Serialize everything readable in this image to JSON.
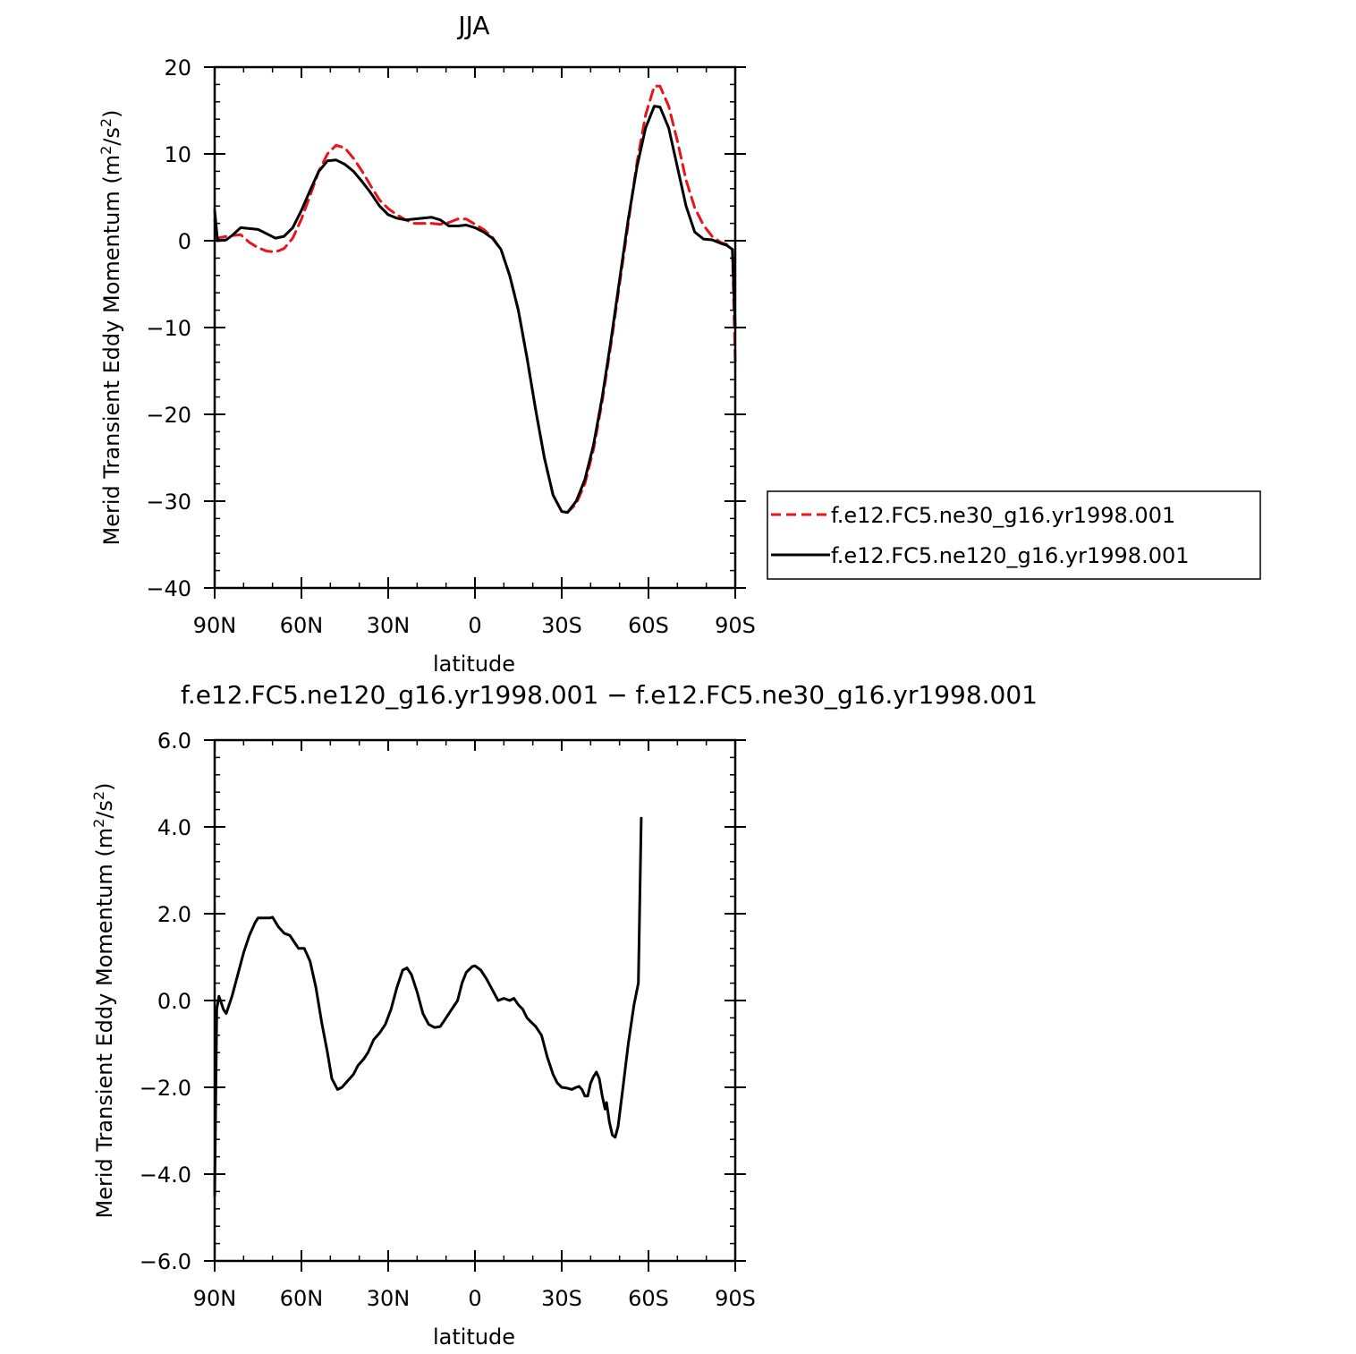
{
  "chart_data": [
    {
      "type": "line",
      "title": "JJA",
      "xlabel": "latitude",
      "ylabel_main": "Merid Transient Eddy Momentum (m",
      "ylabel_mid": "/s",
      "ylabel_end": ")",
      "ylabel_sup1": "2",
      "ylabel_sup2": "2",
      "xlim": [
        90,
        -90
      ],
      "ylim": [
        -40,
        20
      ],
      "xticks": [
        90,
        60,
        30,
        0,
        -30,
        -60,
        -90
      ],
      "xtick_labels": [
        "90N",
        "60N",
        "30N",
        "0",
        "30S",
        "60S",
        "90S"
      ],
      "yticks": [
        20,
        10,
        0,
        -10,
        -20,
        -30,
        -40
      ],
      "ytick_labels": [
        "20",
        "10",
        "0",
        "−10",
        "−20",
        "−30",
        "−40"
      ],
      "legend_position": "right",
      "series": [
        {
          "name": "f.e12.FC5.ne30_g16.yr1998.001",
          "color": "#e8141a",
          "dash": "dashed",
          "points": [
            [
              90,
              2.5
            ],
            [
              89,
              0.3
            ],
            [
              86,
              0.5
            ],
            [
              84,
              0.6
            ],
            [
              81,
              0.7
            ],
            [
              78,
              -0.2
            ],
            [
              75,
              -0.8
            ],
            [
              72,
              -1.2
            ],
            [
              69,
              -1.3
            ],
            [
              66,
              -0.9
            ],
            [
              63,
              0.3
            ],
            [
              60,
              2.5
            ],
            [
              57,
              5.2
            ],
            [
              54,
              8.0
            ],
            [
              51,
              10.0
            ],
            [
              48,
              11.0
            ],
            [
              45,
              10.7
            ],
            [
              42,
              9.5
            ],
            [
              39,
              8.0
            ],
            [
              36,
              6.3
            ],
            [
              33,
              4.7
            ],
            [
              30,
              3.7
            ],
            [
              27,
              3.0
            ],
            [
              24,
              2.4
            ],
            [
              21,
              2.0
            ],
            [
              18,
              2.0
            ],
            [
              15,
              2.0
            ],
            [
              12,
              1.9
            ],
            [
              9,
              2.1
            ],
            [
              6,
              2.5
            ],
            [
              3,
              2.5
            ],
            [
              0,
              1.9
            ],
            [
              -3,
              1.3
            ],
            [
              -6,
              0.4
            ],
            [
              -9,
              -1.0
            ],
            [
              -12,
              -4.0
            ],
            [
              -15,
              -8.0
            ],
            [
              -18,
              -13.5
            ],
            [
              -21,
              -19.5
            ],
            [
              -24,
              -25.0
            ],
            [
              -27,
              -29.3
            ],
            [
              -30,
              -31.2
            ],
            [
              -32,
              -31.3
            ],
            [
              -35,
              -30.3
            ],
            [
              -38,
              -28.0
            ],
            [
              -41,
              -24.0
            ],
            [
              -44,
              -18.5
            ],
            [
              -47,
              -12.0
            ],
            [
              -50,
              -5.0
            ],
            [
              -53,
              2.0
            ],
            [
              -56,
              9.0
            ],
            [
              -59,
              14.5
            ],
            [
              -62,
              17.8
            ],
            [
              -64,
              17.8
            ],
            [
              -67,
              15.5
            ],
            [
              -70,
              11.5
            ],
            [
              -73,
              7.0
            ],
            [
              -76,
              3.8
            ],
            [
              -79,
              1.8
            ],
            [
              -82,
              0.5
            ],
            [
              -85,
              -0.2
            ],
            [
              -87,
              -0.4
            ],
            [
              -89,
              -1.0
            ],
            [
              -90,
              -14.0
            ]
          ]
        },
        {
          "name": "f.e12.FC5.ne120_g16.yr1998.001",
          "color": "#000000",
          "dash": "solid",
          "points": [
            [
              90,
              3.5
            ],
            [
              89,
              0.0
            ],
            [
              86,
              0.1
            ],
            [
              84,
              0.6
            ],
            [
              81,
              1.5
            ],
            [
              78,
              1.4
            ],
            [
              75,
              1.3
            ],
            [
              72,
              0.8
            ],
            [
              69,
              0.3
            ],
            [
              66,
              0.5
            ],
            [
              63,
              1.5
            ],
            [
              60,
              3.5
            ],
            [
              57,
              5.8
            ],
            [
              54,
              8.0
            ],
            [
              51,
              9.2
            ],
            [
              48,
              9.3
            ],
            [
              45,
              8.8
            ],
            [
              42,
              8.0
            ],
            [
              39,
              6.8
            ],
            [
              36,
              5.5
            ],
            [
              33,
              4.0
            ],
            [
              30,
              3.0
            ],
            [
              27,
              2.6
            ],
            [
              24,
              2.4
            ],
            [
              21,
              2.5
            ],
            [
              18,
              2.6
            ],
            [
              15,
              2.7
            ],
            [
              12,
              2.4
            ],
            [
              9,
              1.7
            ],
            [
              6,
              1.7
            ],
            [
              3,
              1.8
            ],
            [
              0,
              1.5
            ],
            [
              -3,
              1.0
            ],
            [
              -6,
              0.3
            ],
            [
              -9,
              -1.0
            ],
            [
              -12,
              -4.0
            ],
            [
              -15,
              -8.0
            ],
            [
              -18,
              -13.5
            ],
            [
              -21,
              -19.5
            ],
            [
              -24,
              -25.0
            ],
            [
              -27,
              -29.3
            ],
            [
              -30,
              -31.2
            ],
            [
              -32,
              -31.3
            ],
            [
              -35,
              -30.0
            ],
            [
              -38,
              -27.5
            ],
            [
              -41,
              -23.5
            ],
            [
              -44,
              -18.0
            ],
            [
              -47,
              -11.5
            ],
            [
              -50,
              -4.5
            ],
            [
              -53,
              2.5
            ],
            [
              -56,
              8.5
            ],
            [
              -59,
              13.0
            ],
            [
              -62,
              15.5
            ],
            [
              -64,
              15.4
            ],
            [
              -67,
              13.0
            ],
            [
              -70,
              8.5
            ],
            [
              -73,
              4.0
            ],
            [
              -76,
              1.0
            ],
            [
              -79,
              0.2
            ],
            [
              -82,
              0.1
            ],
            [
              -85,
              -0.3
            ],
            [
              -87,
              -0.5
            ],
            [
              -89,
              -1.0
            ],
            [
              -90,
              -10.0
            ]
          ]
        }
      ]
    },
    {
      "type": "line",
      "title": "f.e12.FC5.ne120_g16.yr1998.001 − f.e12.FC5.ne30_g16.yr1998.001",
      "xlabel": "latitude",
      "ylabel_main": "Merid Transient Eddy Momentum (m",
      "ylabel_mid": "/s",
      "ylabel_end": ")",
      "ylabel_sup1": "2",
      "ylabel_sup2": "2",
      "xlim": [
        90,
        -90
      ],
      "ylim": [
        -6,
        6
      ],
      "xticks": [
        90,
        60,
        30,
        0,
        -30,
        -60,
        -90
      ],
      "xtick_labels": [
        "90N",
        "60N",
        "30N",
        "0",
        "30S",
        "60S",
        "90S"
      ],
      "yticks": [
        6,
        4,
        2,
        0,
        -2,
        -4,
        -6
      ],
      "ytick_labels": [
        "6.0",
        "4.0",
        "2.0",
        "0.0",
        "−2.0",
        "−4.0",
        "−6.0"
      ],
      "series": [
        {
          "color": "#000000",
          "dash": "solid",
          "points": [
            [
              90,
              -4.5
            ],
            [
              89.3,
              -0.2
            ],
            [
              88.5,
              0.1
            ],
            [
              87,
              -0.2
            ],
            [
              86,
              -0.3
            ],
            [
              84,
              0.1
            ],
            [
              82,
              0.6
            ],
            [
              80,
              1.1
            ],
            [
              78,
              1.5
            ],
            [
              76,
              1.8
            ],
            [
              75,
              1.9
            ],
            [
              73,
              1.9
            ],
            [
              71,
              1.9
            ],
            [
              70,
              1.92
            ],
            [
              68,
              1.7
            ],
            [
              66,
              1.55
            ],
            [
              64,
              1.5
            ],
            [
              62,
              1.3
            ],
            [
              61,
              1.2
            ],
            [
              59,
              1.2
            ],
            [
              57,
              0.9
            ],
            [
              55,
              0.3
            ],
            [
              53,
              -0.5
            ],
            [
              51,
              -1.2
            ],
            [
              49.5,
              -1.8
            ],
            [
              47.5,
              -2.05
            ],
            [
              46,
              -2.0
            ],
            [
              44,
              -1.85
            ],
            [
              42,
              -1.7
            ],
            [
              40.5,
              -1.5
            ],
            [
              38.5,
              -1.35
            ],
            [
              37,
              -1.2
            ],
            [
              35,
              -0.9
            ],
            [
              33,
              -0.75
            ],
            [
              31,
              -0.55
            ],
            [
              29,
              -0.2
            ],
            [
              27,
              0.3
            ],
            [
              25,
              0.7
            ],
            [
              23.5,
              0.75
            ],
            [
              22,
              0.6
            ],
            [
              20,
              0.2
            ],
            [
              18,
              -0.3
            ],
            [
              16,
              -0.55
            ],
            [
              14,
              -0.62
            ],
            [
              12,
              -0.6
            ],
            [
              10,
              -0.4
            ],
            [
              8,
              -0.2
            ],
            [
              6,
              0.0
            ],
            [
              4.5,
              0.4
            ],
            [
              3,
              0.65
            ],
            [
              1,
              0.78
            ],
            [
              0,
              0.8
            ],
            [
              -2,
              0.7
            ],
            [
              -4,
              0.5
            ],
            [
              -6,
              0.25
            ],
            [
              -8,
              0.0
            ],
            [
              -10,
              0.05
            ],
            [
              -12,
              0.0
            ],
            [
              -13.5,
              0.05
            ],
            [
              -15,
              -0.1
            ],
            [
              -16.5,
              -0.2
            ],
            [
              -18,
              -0.4
            ],
            [
              -19.5,
              -0.5
            ],
            [
              -21,
              -0.6
            ],
            [
              -23,
              -0.8
            ],
            [
              -25,
              -1.3
            ],
            [
              -27,
              -1.7
            ],
            [
              -28.5,
              -1.9
            ],
            [
              -30,
              -2.0
            ],
            [
              -32,
              -2.02
            ],
            [
              -33.5,
              -2.05
            ],
            [
              -35,
              -2.0
            ],
            [
              -36,
              -1.98
            ],
            [
              -37,
              -2.05
            ],
            [
              -38,
              -2.2
            ],
            [
              -39,
              -2.2
            ],
            [
              -40,
              -1.9
            ],
            [
              -41,
              -1.75
            ],
            [
              -42,
              -1.65
            ],
            [
              -43,
              -1.8
            ],
            [
              -44,
              -2.2
            ],
            [
              -45,
              -2.5
            ],
            [
              -45.5,
              -2.35
            ],
            [
              -46.5,
              -2.8
            ],
            [
              -47.5,
              -3.1
            ],
            [
              -48.5,
              -3.15
            ],
            [
              -49.5,
              -2.9
            ],
            [
              -51,
              -2.1
            ],
            [
              -53,
              -1.0
            ],
            [
              -55,
              -0.1
            ],
            [
              -56.5,
              0.4
            ],
            [
              -57.5,
              4.2
            ]
          ]
        }
      ]
    }
  ]
}
